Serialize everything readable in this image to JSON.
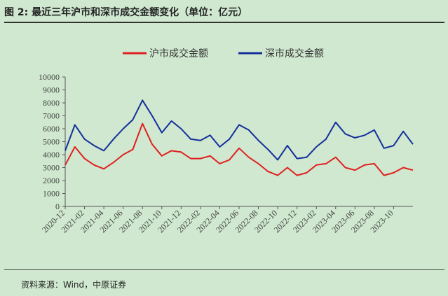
{
  "figure": {
    "title": "图 2:  最近三年沪市和深市成交金额变化（单位：亿元）",
    "source": "资料来源：Wind，中原证券"
  },
  "colors": {
    "sh": "#e02020",
    "sz": "#142f9c",
    "background": "#cfe8cf"
  },
  "chart_data": {
    "type": "line",
    "title": "",
    "xlabel": "",
    "ylabel": "",
    "ylim": [
      0,
      10000
    ],
    "yticks": [
      0,
      1000,
      2000,
      3000,
      4000,
      5000,
      6000,
      7000,
      8000,
      9000,
      10000
    ],
    "grid": false,
    "legend_position": "top-center",
    "x": [
      "2020-12",
      "2021-01",
      "2021-02",
      "2021-03",
      "2021-04",
      "2021-05",
      "2021-06",
      "2021-07",
      "2021-08",
      "2021-09",
      "2021-10",
      "2021-11",
      "2021-12",
      "2022-01",
      "2022-02",
      "2022-03",
      "2022-04",
      "2022-05",
      "2022-06",
      "2022-07",
      "2022-08",
      "2022-09",
      "2022-10",
      "2022-11",
      "2022-12",
      "2023-01",
      "2023-02",
      "2023-03",
      "2023-04",
      "2023-05",
      "2023-06",
      "2023-07",
      "2023-08",
      "2023-09",
      "2023-10",
      "2023-11",
      "2023-12"
    ],
    "xtick_labels": [
      "2020-12",
      "2021-02",
      "2021-04",
      "2021-06",
      "2021-08",
      "2021-10",
      "2021-12",
      "2022-02",
      "2022-04",
      "2022-06",
      "2022-08",
      "2022-10",
      "2022-12",
      "2023-02",
      "2023-04",
      "2023-06",
      "2023-08",
      "2023-10"
    ],
    "series": [
      {
        "name": "沪市成交金额",
        "color": "#e02020",
        "values": [
          3200,
          4600,
          3700,
          3200,
          2900,
          3400,
          4000,
          4400,
          6400,
          4800,
          3900,
          4300,
          4200,
          3700,
          3700,
          3900,
          3300,
          3600,
          4500,
          3800,
          3300,
          2700,
          2400,
          3000,
          2400,
          2600,
          3200,
          3300,
          3800,
          3000,
          2800,
          3200,
          3300,
          2400,
          2600,
          3000,
          2800
        ]
      },
      {
        "name": "深市成交金额",
        "color": "#142f9c",
        "values": [
          4300,
          6300,
          5200,
          4700,
          4300,
          5200,
          6000,
          6700,
          8200,
          7000,
          5700,
          6600,
          6000,
          5200,
          5100,
          5500,
          4600,
          5200,
          6300,
          5900,
          5100,
          4400,
          3600,
          4700,
          3700,
          3800,
          4600,
          5200,
          6500,
          5600,
          5300,
          5500,
          5900,
          4500,
          4700,
          5800,
          4800
        ]
      }
    ]
  }
}
